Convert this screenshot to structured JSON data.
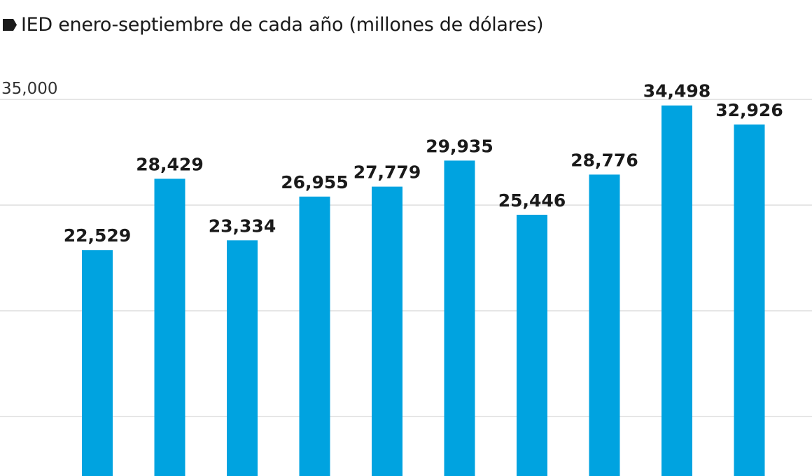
{
  "chart_data": {
    "type": "bar",
    "title": "IED enero-septiembre de cada año (millones de dólares)",
    "xlabel": "",
    "ylabel": "",
    "ylim": [
      0,
      35000
    ],
    "yticks": [
      {
        "value": 35000,
        "label": "35,000"
      }
    ],
    "gridlines": [
      35000,
      26250,
      17500,
      8750
    ],
    "grid": true,
    "values": [
      22529,
      28429,
      23334,
      26955,
      27779,
      29935,
      25446,
      28776,
      34498,
      32926
    ],
    "value_labels": [
      "22,529",
      "28,429",
      "23,334",
      "26,955",
      "27,779",
      "29,935",
      "25,446",
      "28,776",
      "34,498",
      "32,926"
    ],
    "color": "#00a3e0"
  }
}
